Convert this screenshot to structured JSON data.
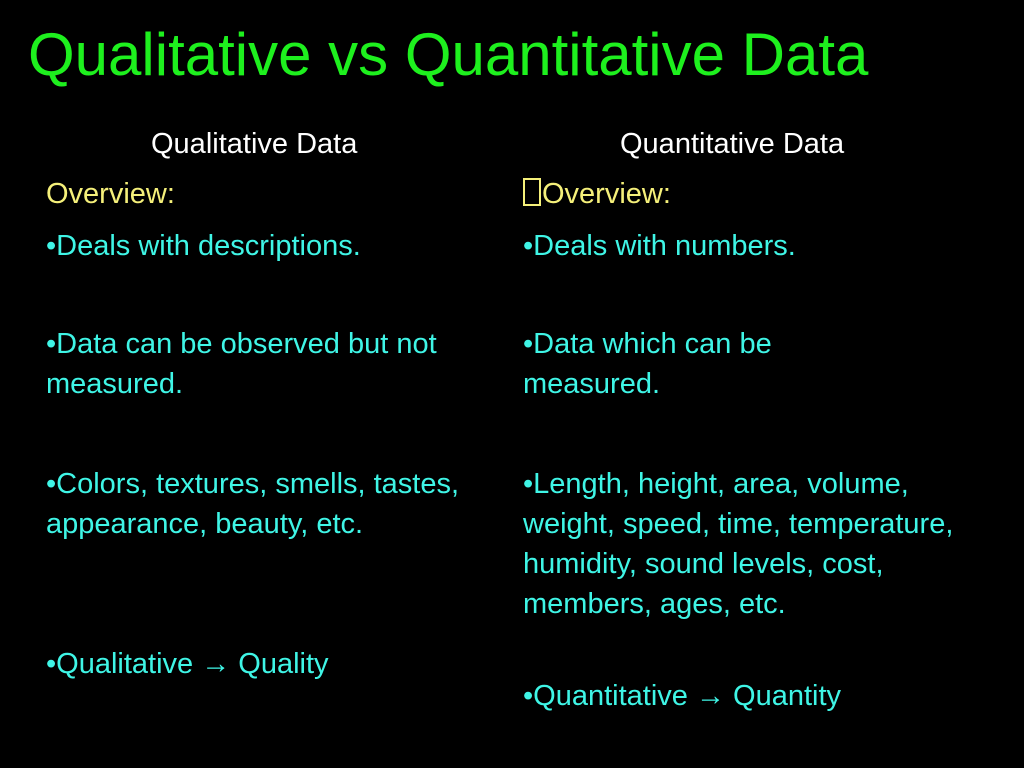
{
  "slide": {
    "title": "Qualitative vs Quantitative Data",
    "left": {
      "heading": "Qualitative Data",
      "overview_label": "Overview:",
      "bullets": [
        "•Deals with descriptions.",
        "•Data can be observed but not measured.",
        "•Colors, textures, smells, tastes, appearance, beauty, etc.",
        "•Qualitative → Quality"
      ]
    },
    "right": {
      "heading": "Quantitative Data",
      "overview_label": "Overview:",
      "bullets": [
        "•Deals with numbers.",
        "•Data which can be measured.",
        "•Length, height, area, volume, weight, speed, time, temperature, humidity, sound levels, cost, members, ages, etc.",
        "•Quantitative → Quantity"
      ]
    }
  },
  "icons": {
    "overview_marker": "missing-glyph-box-icon"
  },
  "colors": {
    "background": "#000000",
    "title": "#1EF01E",
    "heading": "#FFFFFF",
    "overview": "#F5F07A",
    "bullet": "#3FF5E6"
  }
}
